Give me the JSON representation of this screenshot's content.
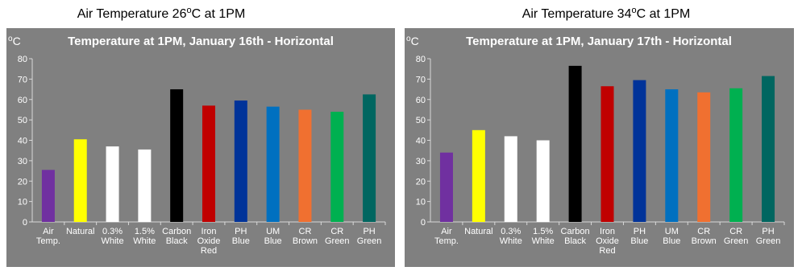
{
  "chart_data": [
    {
      "type": "bar",
      "caption": {
        "text": "Air Temperature 26",
        "sup": "o",
        "rest": "C at 1PM"
      },
      "title": "Temperature at 1PM, January 16th - Horizontal",
      "y_unit": {
        "sup": "o",
        "text": "C"
      },
      "categories": [
        "Air\nTemp.",
        "Natural",
        "0.3%\nWhite",
        "1.5%\nWhite",
        "Carbon\nBlack",
        "Iron\nOxide\nRed",
        "PH\nBlue",
        "UM\nBlue",
        "CR\nBrown",
        "CR\nGreen",
        "PH\nGreen"
      ],
      "values": [
        25.5,
        40.5,
        37,
        35.5,
        65,
        57,
        59.5,
        56.5,
        55,
        54,
        62.5
      ],
      "colors": [
        "#7030a0",
        "#ffff00",
        "#ffffff",
        "#ffffff",
        "#000000",
        "#c00000",
        "#003399",
        "#0070c0",
        "#f07030",
        "#00b050",
        "#006660"
      ],
      "ylim": [
        0,
        80
      ],
      "yticks": [
        0,
        10,
        20,
        30,
        40,
        50,
        60,
        70,
        80
      ]
    },
    {
      "type": "bar",
      "caption": {
        "text": "Air Temperature 34",
        "sup": "o",
        "rest": "C at 1PM"
      },
      "title": "Temperature at 1PM, January 17th - Horizontal",
      "y_unit": {
        "sup": "o",
        "text": "C"
      },
      "categories": [
        "Air\nTemp.",
        "Natural",
        "0.3%\nWhite",
        "1.5%\nWhite",
        "Carbon\nBlack",
        "Iron\nOxide\nRed",
        "PH\nBlue",
        "UM\nBlue",
        "CR\nBrown",
        "CR\nGreen",
        "PH\nGreen"
      ],
      "values": [
        34,
        45,
        42,
        40,
        76.5,
        66.5,
        69.5,
        65,
        63.5,
        65.5,
        71.5
      ],
      "colors": [
        "#7030a0",
        "#ffff00",
        "#ffffff",
        "#ffffff",
        "#000000",
        "#c00000",
        "#003399",
        "#0070c0",
        "#f07030",
        "#00b050",
        "#006660"
      ],
      "ylim": [
        0,
        80
      ],
      "yticks": [
        0,
        10,
        20,
        30,
        40,
        50,
        60,
        70,
        80
      ]
    }
  ]
}
